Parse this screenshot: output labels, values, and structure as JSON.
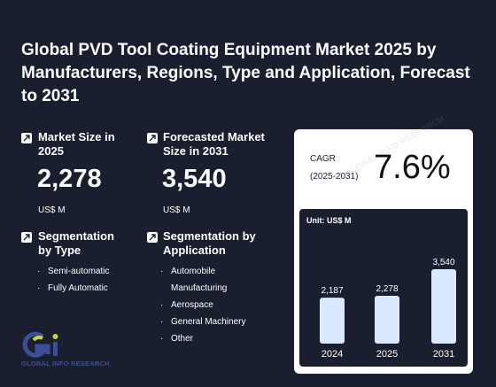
{
  "title": "Global PVD Tool Coating Equipment Market 2025 by Manufacturers, Regions, Type and Application, Forecast to 2031",
  "market_size": {
    "label": "Market Size in 2025",
    "value": "2,278",
    "unit": "US$ M"
  },
  "forecast_size": {
    "label": "Forecasted Market Size in 2031",
    "value": "3,540",
    "unit": "US$ M"
  },
  "segmentation_type": {
    "label": "Segmentation by Type",
    "items": [
      "Semi-automatic",
      "Fully Automatic"
    ]
  },
  "segmentation_application": {
    "label": "Segmentation by Application",
    "items": [
      "Automobile Manufacturing",
      "Aerospace",
      "General Machinery",
      "Other"
    ]
  },
  "cagr": {
    "label": "CAGR",
    "range": "(2025-2031)",
    "value": "7.6%"
  },
  "logo_text": "GLOBAL INFO RESEARCH",
  "watermark_text": "GLOBAL INFO RESEARCH",
  "colors": {
    "background": "#1a1f30",
    "bar": "#dbe8ff",
    "card": "#ffffff"
  },
  "chart_data": {
    "type": "bar",
    "unit_label": "Unit: US$ M",
    "categories": [
      "2024",
      "2025",
      "2031"
    ],
    "values": [
      2187,
      2278,
      3540
    ],
    "value_labels": [
      "2,187",
      "2,278",
      "3,540"
    ],
    "ylim": [
      0,
      3540
    ]
  }
}
